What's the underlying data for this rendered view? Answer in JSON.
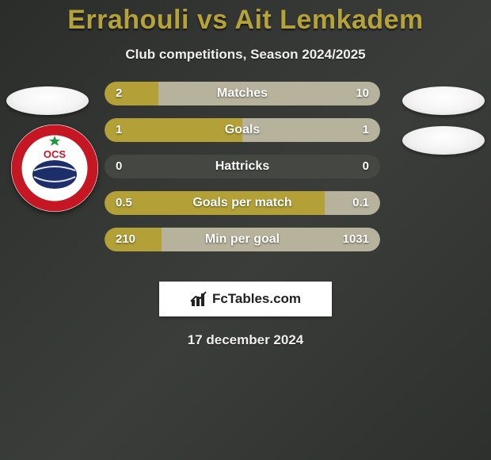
{
  "title": "Errahouli vs Ait Lemkadem",
  "subtitle": "Club competitions, Season 2024/2025",
  "date": "17 december 2024",
  "brand": "FcTables.com",
  "colors": {
    "left_bar": "#b3a137",
    "right_bar": "#b6b29c",
    "bar_track": "#454742",
    "title": "#b5a23a",
    "text": "#ffffff",
    "footer_bg": "#ffffff",
    "club_ring": "#c51623",
    "club_ball": "#1d2f6b"
  },
  "bars": {
    "total_width": 348,
    "height": 30,
    "gap": 16,
    "label_fontsize": 16,
    "value_fontsize": 15,
    "rows": [
      {
        "label": "Matches",
        "left_val": "2",
        "right_val": "10",
        "left_w": 68,
        "right_w": 280
      },
      {
        "label": "Goals",
        "left_val": "1",
        "right_val": "1",
        "left_w": 174,
        "right_w": 174
      },
      {
        "label": "Hattricks",
        "left_val": "0",
        "right_val": "0",
        "left_w": 0,
        "right_w": 0
      },
      {
        "label": "Goals per match",
        "left_val": "0.5",
        "right_val": "0.1",
        "left_w": 278,
        "right_w": 70
      },
      {
        "label": "Min per goal",
        "left_val": "210",
        "right_val": "1031",
        "left_w": 72,
        "right_w": 276
      }
    ]
  }
}
